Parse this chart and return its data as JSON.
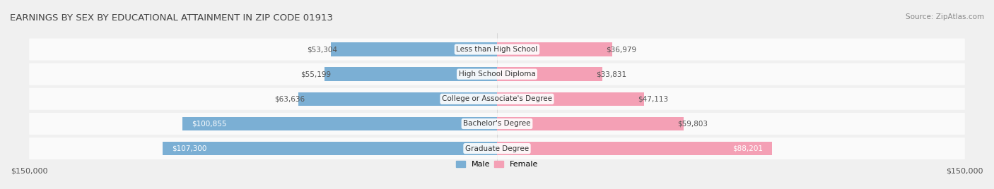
{
  "title": "EARNINGS BY SEX BY EDUCATIONAL ATTAINMENT IN ZIP CODE 01913",
  "source": "Source: ZipAtlas.com",
  "categories": [
    "Less than High School",
    "High School Diploma",
    "College or Associate's Degree",
    "Bachelor's Degree",
    "Graduate Degree"
  ],
  "male_values": [
    53304,
    55199,
    63636,
    100855,
    107300
  ],
  "female_values": [
    36979,
    33831,
    47113,
    59803,
    88201
  ],
  "male_color": "#7bafd4",
  "female_color": "#f4a0b5",
  "max_value": 150000,
  "bg_color": "#f0f0f0",
  "bar_bg_color": "#e8e8e8",
  "label_color": "#555555",
  "title_color": "#444444"
}
